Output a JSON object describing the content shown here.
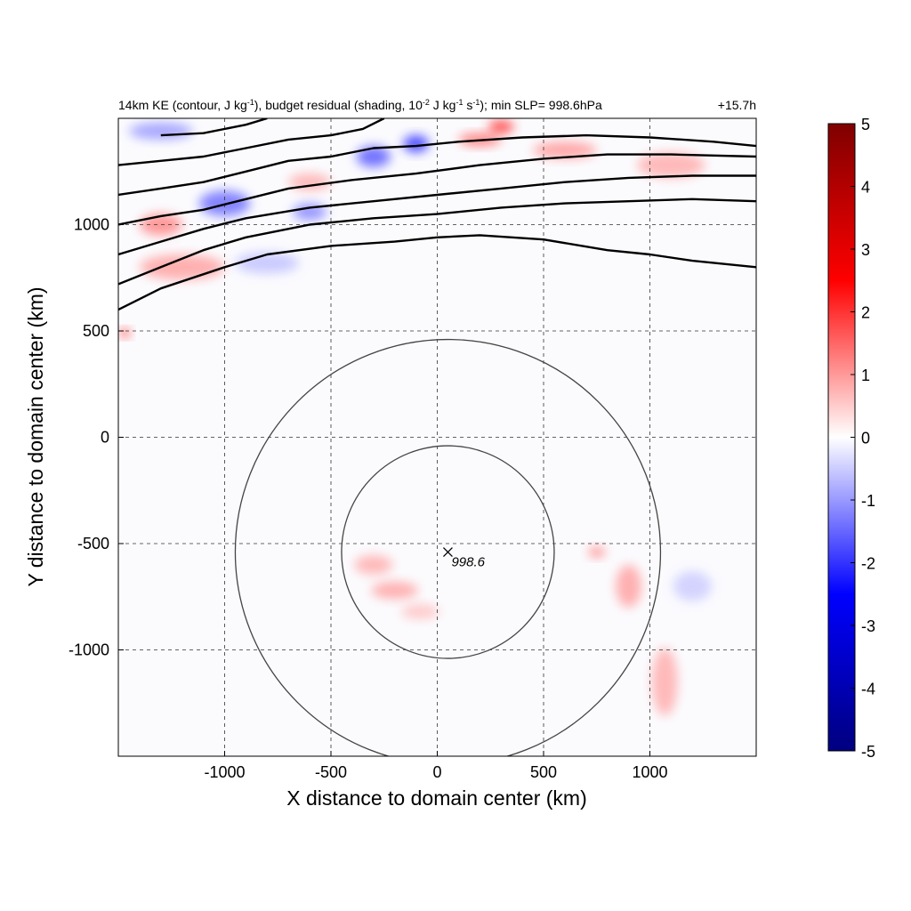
{
  "chart_data": {
    "type": "heatmap",
    "title": {
      "left_prefix": "14km KE (contour, J kg",
      "left_sup1": "-1",
      "left_mid1": "), budget residual (shading, 10",
      "left_sup2": "-2",
      "left_mid2": " J kg",
      "left_sup3": "-1",
      "left_mid3": " s",
      "left_sup4": "-1",
      "left_suffix": "); min SLP= 998.6hPa",
      "right": "+15.7h"
    },
    "xlabel": "X distance to domain center (km)",
    "ylabel": "Y distance to domain center (km)",
    "xlim": [
      -1500,
      1500
    ],
    "ylim": [
      -1500,
      1500
    ],
    "xticks": [
      -1000,
      -500,
      0,
      500,
      1000
    ],
    "yticks": [
      1000,
      500,
      0,
      -500,
      -1000
    ],
    "xtick_labels": [
      "-1000",
      "-500",
      "0",
      "500",
      "1000"
    ],
    "ytick_labels": [
      "1000",
      "500",
      "0",
      "-500",
      "-1000"
    ],
    "grid": true,
    "colorbar": {
      "range": [
        -5,
        5
      ],
      "ticks": [
        5,
        4,
        3,
        2,
        1,
        0,
        -1,
        -2,
        -3,
        -4,
        -5
      ],
      "tick_labels": [
        "5",
        "4",
        "3",
        "2",
        "1",
        "0",
        "-1",
        "-2",
        "-3",
        "-4",
        "-5"
      ],
      "colormap": [
        "#00007f",
        "#0000ff",
        "#ffffff",
        "#ff0000",
        "#7f0000"
      ]
    },
    "storm_center": {
      "x": 50,
      "y": -540,
      "label": "998.6",
      "marker": "x"
    },
    "range_circles_km": [
      500,
      1000
    ],
    "ke_contours": [
      {
        "name": "contour-1",
        "points": [
          [
            -1500,
            600
          ],
          [
            -1300,
            700
          ],
          [
            -1000,
            800
          ],
          [
            -800,
            860
          ],
          [
            -500,
            900
          ],
          [
            -200,
            920
          ],
          [
            0,
            940
          ],
          [
            200,
            950
          ],
          [
            500,
            930
          ],
          [
            800,
            880
          ],
          [
            1000,
            860
          ],
          [
            1200,
            830
          ],
          [
            1500,
            800
          ]
        ]
      },
      {
        "name": "contour-2",
        "points": [
          [
            -1500,
            720
          ],
          [
            -1300,
            800
          ],
          [
            -1100,
            880
          ],
          [
            -900,
            940
          ],
          [
            -600,
            1000
          ],
          [
            -300,
            1030
          ],
          [
            0,
            1050
          ],
          [
            300,
            1080
          ],
          [
            600,
            1100
          ],
          [
            900,
            1110
          ],
          [
            1200,
            1120
          ],
          [
            1500,
            1110
          ]
        ]
      },
      {
        "name": "contour-3",
        "points": [
          [
            -1500,
            860
          ],
          [
            -1300,
            920
          ],
          [
            -1100,
            980
          ],
          [
            -900,
            1030
          ],
          [
            -600,
            1080
          ],
          [
            -300,
            1110
          ],
          [
            0,
            1140
          ],
          [
            300,
            1170
          ],
          [
            600,
            1200
          ],
          [
            900,
            1220
          ],
          [
            1200,
            1230
          ],
          [
            1500,
            1230
          ]
        ]
      },
      {
        "name": "contour-4",
        "points": [
          [
            -1500,
            1000
          ],
          [
            -1300,
            1040
          ],
          [
            -1100,
            1070
          ],
          [
            -900,
            1120
          ],
          [
            -700,
            1170
          ],
          [
            -400,
            1210
          ],
          [
            -100,
            1240
          ],
          [
            200,
            1280
          ],
          [
            500,
            1310
          ],
          [
            800,
            1330
          ],
          [
            1100,
            1330
          ],
          [
            1500,
            1320
          ]
        ]
      },
      {
        "name": "contour-5",
        "points": [
          [
            -1500,
            1140
          ],
          [
            -1300,
            1170
          ],
          [
            -1100,
            1200
          ],
          [
            -900,
            1250
          ],
          [
            -700,
            1300
          ],
          [
            -500,
            1320
          ],
          [
            -300,
            1360
          ],
          [
            -100,
            1370
          ],
          [
            100,
            1390
          ],
          [
            400,
            1410
          ],
          [
            700,
            1420
          ],
          [
            1000,
            1410
          ],
          [
            1300,
            1390
          ],
          [
            1500,
            1370
          ]
        ]
      },
      {
        "name": "contour-6",
        "points": [
          [
            -1500,
            1280
          ],
          [
            -1300,
            1300
          ],
          [
            -1100,
            1320
          ],
          [
            -900,
            1360
          ],
          [
            -700,
            1400
          ],
          [
            -500,
            1420
          ],
          [
            -350,
            1450
          ],
          [
            -250,
            1500
          ]
        ]
      },
      {
        "name": "contour-7",
        "points": [
          [
            -1300,
            1420
          ],
          [
            -1100,
            1430
          ],
          [
            -900,
            1470
          ],
          [
            -800,
            1500
          ]
        ]
      }
    ],
    "residual_patches": [
      {
        "x": -300,
        "y": -600,
        "value": 0.8,
        "rx": 90,
        "ry": 45
      },
      {
        "x": -200,
        "y": -720,
        "value": 0.9,
        "rx": 110,
        "ry": 40
      },
      {
        "x": -80,
        "y": -820,
        "value": 0.6,
        "rx": 90,
        "ry": 35
      },
      {
        "x": 750,
        "y": -540,
        "value": 1.2,
        "rx": 40,
        "ry": 25
      },
      {
        "x": 900,
        "y": -700,
        "value": 0.9,
        "rx": 60,
        "ry": 100
      },
      {
        "x": 1070,
        "y": -1150,
        "value": 0.8,
        "rx": 60,
        "ry": 160
      },
      {
        "x": 1200,
        "y": -700,
        "value": -0.5,
        "rx": 90,
        "ry": 70
      },
      {
        "x": -1000,
        "y": 1100,
        "value": -1.4,
        "rx": 120,
        "ry": 60
      },
      {
        "x": -1300,
        "y": 1000,
        "value": 1.2,
        "rx": 100,
        "ry": 50
      },
      {
        "x": -600,
        "y": 1060,
        "value": -1.2,
        "rx": 80,
        "ry": 40
      },
      {
        "x": -300,
        "y": 1320,
        "value": -1.6,
        "rx": 80,
        "ry": 50
      },
      {
        "x": -100,
        "y": 1380,
        "value": -2.0,
        "rx": 60,
        "ry": 40
      },
      {
        "x": 200,
        "y": 1400,
        "value": 1.4,
        "rx": 100,
        "ry": 30
      },
      {
        "x": 600,
        "y": 1350,
        "value": 1.0,
        "rx": 150,
        "ry": 40
      },
      {
        "x": 1100,
        "y": 1280,
        "value": 0.8,
        "rx": 160,
        "ry": 60
      },
      {
        "x": -1200,
        "y": 800,
        "value": 0.9,
        "rx": 200,
        "ry": 60
      },
      {
        "x": -800,
        "y": 820,
        "value": -0.6,
        "rx": 150,
        "ry": 50
      },
      {
        "x": -1470,
        "y": 490,
        "value": 2.0,
        "rx": 25,
        "ry": 20
      },
      {
        "x": -600,
        "y": 1200,
        "value": 0.8,
        "rx": 100,
        "ry": 40
      },
      {
        "x": 300,
        "y": 1460,
        "value": 2.0,
        "rx": 60,
        "ry": 30
      },
      {
        "x": -1300,
        "y": 1440,
        "value": -1.0,
        "rx": 150,
        "ry": 40
      }
    ]
  }
}
